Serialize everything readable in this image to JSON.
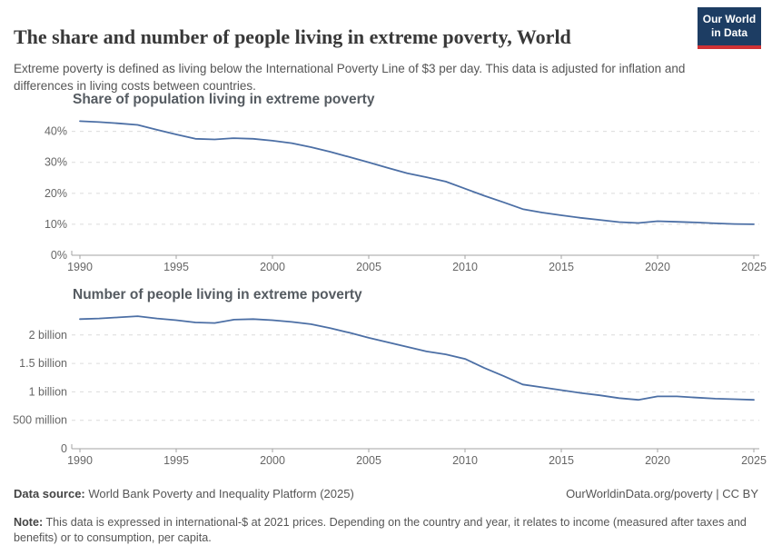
{
  "header": {
    "title": "The share and number of people living in extreme poverty, World",
    "subtitle": "Extreme poverty is defined as living below the International Poverty Line of $3 per day. This data is adjusted for inflation and differences in living costs between countries.",
    "logo": {
      "line1": "Our World",
      "line2": "in Data",
      "bg_color": "#1d3d63",
      "accent_color": "#cf3235"
    }
  },
  "footer": {
    "datasource_label": "Data source:",
    "datasource_value": " World Bank Poverty and Inequality Platform (2025)",
    "credit": "OurWorldinData.org/poverty | CC BY",
    "note_label": "Note:",
    "note_value": " This data is expressed in international-$ at 2021 prices. Depending on the country and year, it relates to income (measured after taxes and benefits) or to consumption, per capita."
  },
  "chart_data": [
    {
      "type": "line",
      "title": "Share of population living in extreme poverty",
      "xlabel": "",
      "ylabel": "",
      "unit": "%",
      "x": [
        1990,
        1991,
        1992,
        1993,
        1994,
        1995,
        1996,
        1997,
        1998,
        1999,
        2000,
        2001,
        2002,
        2003,
        2004,
        2005,
        2006,
        2007,
        2008,
        2009,
        2010,
        2011,
        2012,
        2013,
        2014,
        2015,
        2016,
        2017,
        2018,
        2019,
        2020,
        2021,
        2022,
        2023,
        2024,
        2025
      ],
      "values": [
        43.3,
        43.0,
        42.6,
        42.1,
        40.5,
        39.0,
        37.6,
        37.4,
        37.8,
        37.6,
        37.0,
        36.2,
        34.9,
        33.4,
        31.7,
        30.0,
        28.2,
        26.5,
        25.2,
        23.8,
        21.5,
        19.2,
        17.1,
        14.9,
        13.8,
        12.9,
        12.1,
        11.4,
        10.7,
        10.4,
        11.0,
        10.8,
        10.6,
        10.3,
        10.1,
        10.0
      ],
      "xlim": [
        1990,
        2025
      ],
      "ylim": [
        0,
        44
      ],
      "yticks": [
        {
          "value": 0,
          "label": "0%"
        },
        {
          "value": 10,
          "label": "10%"
        },
        {
          "value": 20,
          "label": "20%"
        },
        {
          "value": 30,
          "label": "30%"
        },
        {
          "value": 40,
          "label": "40%"
        }
      ],
      "xticks": [
        1990,
        1995,
        2000,
        2005,
        2010,
        2015,
        2020,
        2025
      ],
      "line_color": "#4C6FA5",
      "grid": true,
      "legend": "none"
    },
    {
      "type": "line",
      "title": "Number of people living in extreme poverty",
      "xlabel": "",
      "ylabel": "",
      "unit": "billion people",
      "x": [
        1990,
        1991,
        1992,
        1993,
        1994,
        1995,
        1996,
        1997,
        1998,
        1999,
        2000,
        2001,
        2002,
        2003,
        2004,
        2005,
        2006,
        2007,
        2008,
        2009,
        2010,
        2011,
        2012,
        2013,
        2014,
        2015,
        2016,
        2017,
        2018,
        2019,
        2020,
        2021,
        2022,
        2023,
        2024,
        2025
      ],
      "values": [
        2.28,
        2.29,
        2.31,
        2.33,
        2.29,
        2.26,
        2.22,
        2.21,
        2.27,
        2.28,
        2.26,
        2.23,
        2.19,
        2.12,
        2.04,
        1.95,
        1.87,
        1.79,
        1.71,
        1.66,
        1.58,
        1.42,
        1.28,
        1.13,
        1.08,
        1.03,
        0.98,
        0.94,
        0.89,
        0.86,
        0.92,
        0.92,
        0.9,
        0.88,
        0.87,
        0.86
      ],
      "xlim": [
        1990,
        2025
      ],
      "ylim": [
        0,
        2.38
      ],
      "yticks": [
        {
          "value": 0,
          "label": "0"
        },
        {
          "value": 0.5,
          "label": "500 million"
        },
        {
          "value": 1,
          "label": "1 billion"
        },
        {
          "value": 1.5,
          "label": "1.5 billion"
        },
        {
          "value": 2,
          "label": "2 billion"
        }
      ],
      "xticks": [
        1990,
        1995,
        2000,
        2005,
        2010,
        2015,
        2020,
        2025
      ],
      "line_color": "#4C6FA5",
      "grid": true,
      "legend": "none"
    }
  ]
}
